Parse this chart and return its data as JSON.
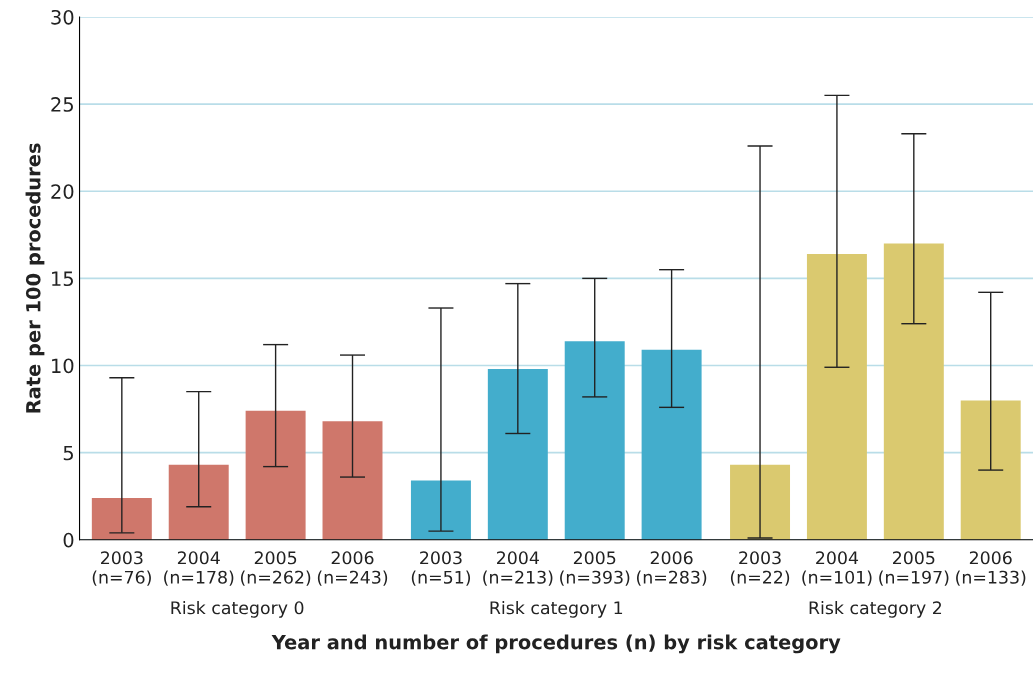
{
  "chart_data": {
    "type": "bar",
    "xlabel": "Year and number of procedures (n) by risk category",
    "ylabel": "Rate per 100 procedures",
    "categories": [
      "2003\n(n=76)",
      "2004\n(n=178)",
      "2005\n(n=262)",
      "2006\n(n=243)",
      "2003\n(n=51)",
      "2004\n(n=213)",
      "2005\n(n=393)",
      "2006\n(n=283)",
      "2003\n(n=22)",
      "2004\n(n=101)",
      "2005\n(n=197)",
      "2006\n(n=133)"
    ],
    "series": [
      {
        "color": "#cf776b",
        "values": [
          2.4,
          4.3,
          7.4,
          6.8,
          null,
          null,
          null,
          null,
          null,
          null,
          null,
          null
        ],
        "errors": [
          [
            0.4,
            9.3
          ],
          [
            1.9,
            8.5
          ],
          [
            4.2,
            11.2
          ],
          [
            3.6,
            10.6
          ],
          null,
          null,
          null,
          null,
          null,
          null,
          null,
          null
        ]
      },
      {
        "color": "#43adcc",
        "values": [
          null,
          null,
          null,
          null,
          3.4,
          9.8,
          11.4,
          10.9,
          null,
          null,
          null,
          null
        ],
        "errors": [
          null,
          null,
          null,
          null,
          [
            0.5,
            13.3
          ],
          [
            6.1,
            14.7
          ],
          [
            8.2,
            15.0
          ],
          [
            7.6,
            15.5
          ],
          null,
          null,
          null,
          null
        ]
      },
      {
        "color": "#dac96f",
        "values": [
          null,
          null,
          null,
          null,
          null,
          null,
          null,
          null,
          4.3,
          16.4,
          17.0,
          8.0
        ],
        "errors": [
          null,
          null,
          null,
          null,
          null,
          null,
          null,
          null,
          [
            0.1,
            22.6
          ],
          [
            9.9,
            25.5
          ],
          [
            12.4,
            23.3
          ],
          [
            4.0,
            14.2
          ]
        ]
      }
    ],
    "annotations": [
      "Risk category 0",
      "Risk category 1",
      "Risk category 2"
    ],
    "ylim": [
      0,
      30
    ],
    "yticks": [
      0,
      5,
      10,
      15,
      20,
      25,
      30
    ],
    "grid": "y",
    "legend": false
  }
}
